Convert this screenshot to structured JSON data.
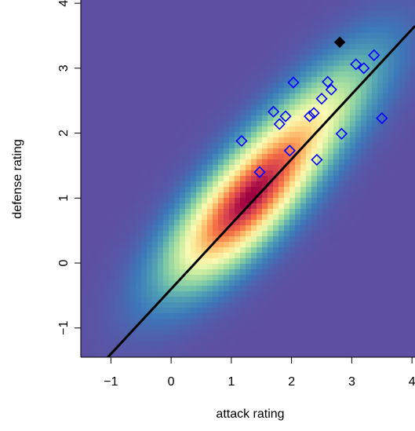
{
  "chart_data": {
    "type": "scatter",
    "xlabel": "attack rating",
    "ylabel": "defense rating",
    "xlim": [
      -1.5,
      4.05
    ],
    "ylim": [
      -1.45,
      4.05
    ],
    "xticks": [
      "-1",
      "0",
      "1",
      "2",
      "3",
      "4"
    ],
    "yticks": [
      "-1",
      "0",
      "1",
      "2",
      "3",
      "4"
    ],
    "background": "2D kernel density heatmap (Spectral palette: purple low, yellow mid, red high)",
    "density_peaks": [
      {
        "x": 1.2,
        "y": 0.85,
        "weight": 1.0
      },
      {
        "x": 1.9,
        "y": 1.7,
        "weight": 0.55
      },
      {
        "x": 2.8,
        "y": 2.6,
        "weight": 0.35
      },
      {
        "x": 0.5,
        "y": 0.3,
        "weight": 0.3
      }
    ],
    "regression_line": {
      "slope": 1.0,
      "intercept": -0.4
    },
    "series": [
      {
        "marker": "open diamond",
        "color": "#0000ff",
        "points": [
          {
            "x": 1.17,
            "y": 1.88
          },
          {
            "x": 1.47,
            "y": 1.4
          },
          {
            "x": 1.7,
            "y": 2.33
          },
          {
            "x": 1.8,
            "y": 2.14
          },
          {
            "x": 1.9,
            "y": 2.26
          },
          {
            "x": 1.97,
            "y": 1.73
          },
          {
            "x": 2.03,
            "y": 2.78
          },
          {
            "x": 2.3,
            "y": 2.26
          },
          {
            "x": 2.37,
            "y": 2.31
          },
          {
            "x": 2.42,
            "y": 1.59
          },
          {
            "x": 2.5,
            "y": 2.53
          },
          {
            "x": 2.6,
            "y": 2.79
          },
          {
            "x": 2.66,
            "y": 2.67
          },
          {
            "x": 2.83,
            "y": 1.99
          },
          {
            "x": 3.07,
            "y": 3.06
          },
          {
            "x": 3.2,
            "y": 3.0
          },
          {
            "x": 3.37,
            "y": 3.2
          },
          {
            "x": 3.5,
            "y": 2.23
          }
        ]
      },
      {
        "marker": "filled diamond",
        "color": "#000000",
        "points": [
          {
            "x": 2.8,
            "y": 3.4
          }
        ]
      }
    ]
  }
}
